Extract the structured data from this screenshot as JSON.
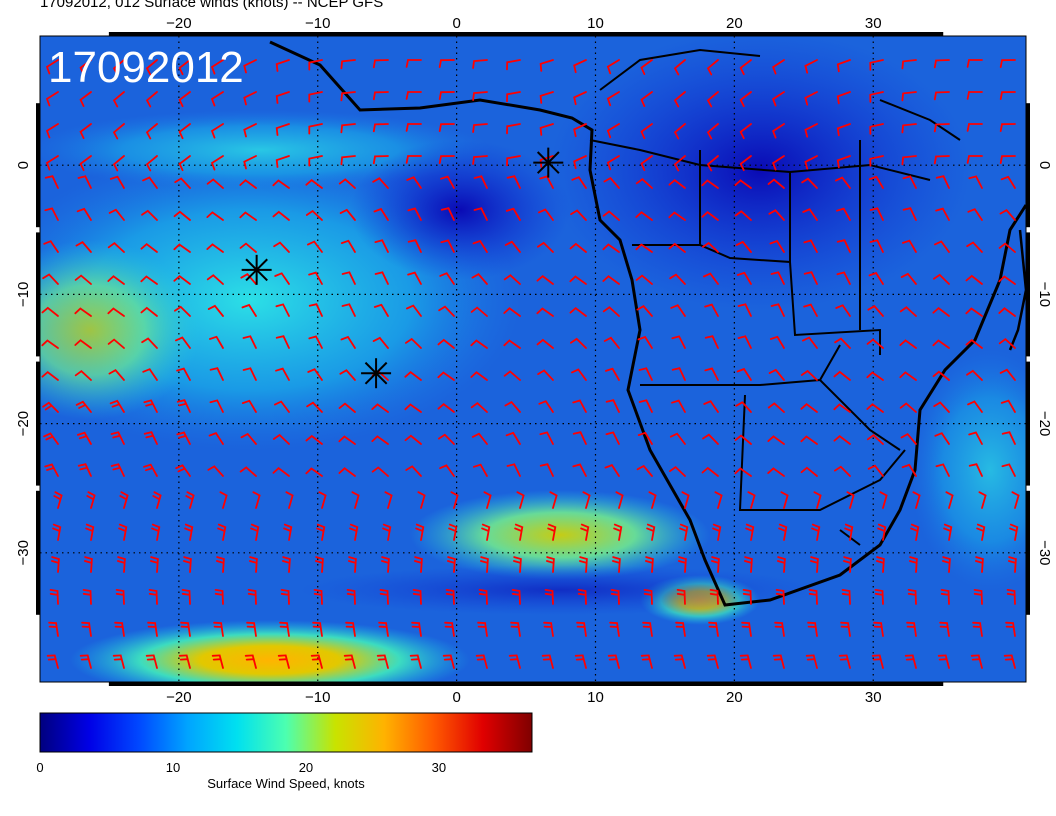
{
  "title": "17092012, 012 Surface winds (knots) -- NCEP GFS",
  "stamp": "17092012",
  "map": {
    "lon_range": [
      -30,
      41
    ],
    "lat_range": [
      -40,
      10
    ],
    "lon_ticks": [
      {
        "value": -20,
        "label": "−20"
      },
      {
        "value": -10,
        "label": "−10"
      },
      {
        "value": 0,
        "label": "0"
      },
      {
        "value": 10,
        "label": "10"
      },
      {
        "value": 20,
        "label": "20"
      },
      {
        "value": 30,
        "label": "30"
      }
    ],
    "lat_ticks": [
      {
        "value": 0,
        "label": "0"
      },
      {
        "value": -10,
        "label": "−10"
      },
      {
        "value": -20,
        "label": "−20"
      },
      {
        "value": -30,
        "label": "−30"
      }
    ],
    "gridlines": true,
    "barb_color": "#ff0000",
    "markers": [
      {
        "lon": 6.6,
        "lat": 0.2
      },
      {
        "lon": -14.4,
        "lat": -8.1
      },
      {
        "lon": -5.8,
        "lat": -16.1
      }
    ]
  },
  "colorbar": {
    "label": "Surface Wind Speed, knots",
    "range": [
      0,
      37
    ],
    "ticks": [
      {
        "value": 0,
        "label": "0"
      },
      {
        "value": 10,
        "label": "10"
      },
      {
        "value": 20,
        "label": "20"
      },
      {
        "value": 30,
        "label": "30"
      }
    ],
    "colors": [
      "#00007f",
      "#0000e6",
      "#0047ff",
      "#00a4ff",
      "#00e0f0",
      "#4cffb0",
      "#c8e300",
      "#ffb200",
      "#ff5a00",
      "#e00000",
      "#7f0000"
    ]
  }
}
